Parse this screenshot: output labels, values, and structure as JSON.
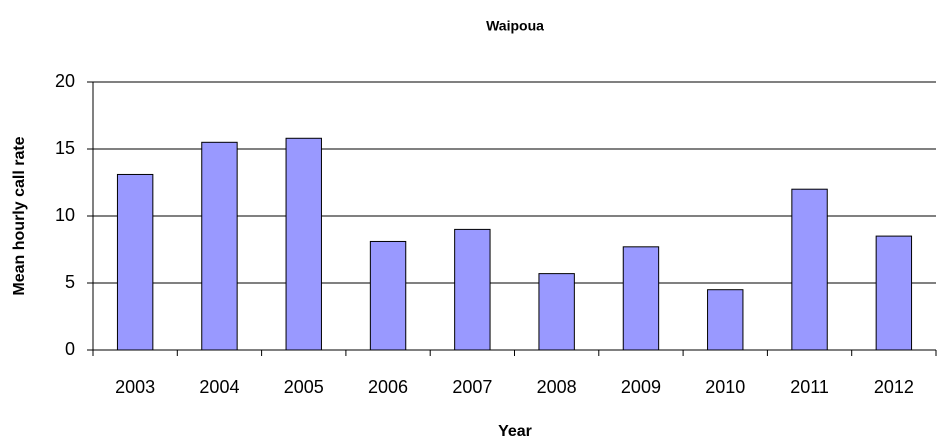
{
  "chart_data": {
    "type": "bar",
    "title": "Waipoua",
    "x_label": "Year",
    "y_label": "Mean hourly call rate",
    "categories": [
      "2003",
      "2004",
      "2005",
      "2006",
      "2007",
      "2008",
      "2009",
      "2010",
      "2011",
      "2012"
    ],
    "values": [
      13.1,
      15.5,
      15.8,
      8.1,
      9.0,
      5.7,
      7.7,
      4.5,
      12.0,
      8.5
    ],
    "color": "#9999ff",
    "ylim": [
      0,
      20
    ],
    "yticks": [
      0,
      5,
      10,
      15,
      20
    ],
    "grid": true
  }
}
